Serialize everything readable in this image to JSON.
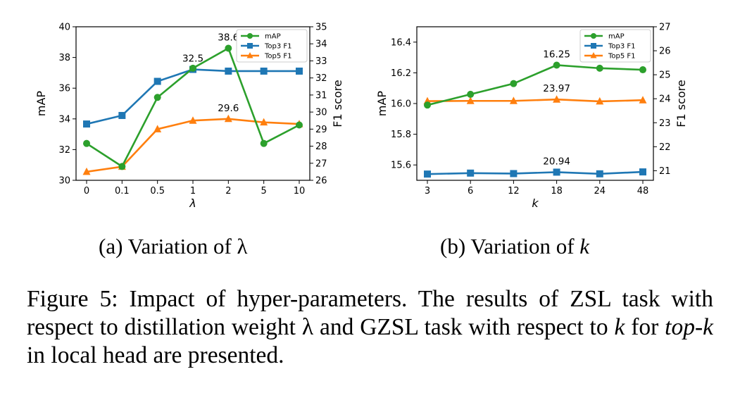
{
  "chart_data": [
    {
      "type": "line",
      "xlabel": "λ",
      "ylabel": "mAP",
      "y2label": "F1 score",
      "categories": [
        "0",
        "0.1",
        "0.5",
        "1",
        "2",
        "5",
        "10"
      ],
      "ylim": [
        30,
        40
      ],
      "yticks": [
        30,
        32,
        34,
        36,
        38,
        40
      ],
      "y2lim": [
        26,
        35
      ],
      "y2ticks": [
        26,
        27,
        28,
        29,
        30,
        31,
        32,
        33,
        34,
        35
      ],
      "legend_position": "top-right",
      "series": [
        {
          "name": "mAP",
          "axis": "left",
          "color": "#2ca02c",
          "marker": "circle",
          "values": [
            32.4,
            30.9,
            35.4,
            37.3,
            38.6,
            32.4,
            33.6
          ]
        },
        {
          "name": "Top3 F1",
          "axis": "right",
          "color": "#1f77b4",
          "marker": "square",
          "values": [
            29.3,
            29.8,
            31.8,
            32.5,
            32.4,
            32.4,
            32.4
          ]
        },
        {
          "name": "Top5 F1",
          "axis": "right",
          "color": "#ff7f0e",
          "marker": "triangle",
          "values": [
            26.5,
            26.8,
            29.0,
            29.5,
            29.6,
            29.4,
            29.3
          ]
        }
      ],
      "annotations": [
        {
          "text": "38.6",
          "series": 0,
          "index": 4
        },
        {
          "text": "32.5",
          "series": 1,
          "index": 3
        },
        {
          "text": "29.6",
          "series": 2,
          "index": 4
        }
      ]
    },
    {
      "type": "line",
      "xlabel": "k",
      "ylabel": "mAP",
      "y2label": "F1 score",
      "categories": [
        "3",
        "6",
        "12",
        "18",
        "24",
        "48"
      ],
      "ylim": [
        15.5,
        16.5
      ],
      "yticks": [
        15.6,
        15.8,
        16.0,
        16.2,
        16.4
      ],
      "y2lim": [
        20.6,
        27
      ],
      "y2ticks": [
        21,
        22,
        23,
        24,
        25,
        26,
        27
      ],
      "legend_position": "top-right",
      "series": [
        {
          "name": "mAP",
          "axis": "left",
          "color": "#2ca02c",
          "marker": "circle",
          "values": [
            15.99,
            16.06,
            16.13,
            16.25,
            16.23,
            16.22
          ]
        },
        {
          "name": "Top3 F1",
          "axis": "right",
          "color": "#1f77b4",
          "marker": "square",
          "values": [
            20.86,
            20.9,
            20.88,
            20.94,
            20.87,
            20.95
          ]
        },
        {
          "name": "Top5 F1",
          "axis": "right",
          "color": "#ff7f0e",
          "marker": "triangle",
          "values": [
            23.9,
            23.91,
            23.91,
            23.97,
            23.89,
            23.94
          ]
        }
      ],
      "annotations": [
        {
          "text": "16.25",
          "series": 0,
          "index": 3
        },
        {
          "text": "23.97",
          "series": 2,
          "index": 3
        },
        {
          "text": "20.94",
          "series": 1,
          "index": 3
        }
      ]
    }
  ],
  "subcaptions": [
    "(a) Variation of λ",
    "(b) Variation of "
  ],
  "subcaption_b_var": "k",
  "caption": {
    "p1": "Figure 5: Impact of hyper-parameters. The results of ZSL task with respect to distillation weight ",
    "v1": "λ",
    "p2": " and GZSL task with respect to ",
    "v2": "k",
    "p3": " for ",
    "v3": "top-",
    "v4": "k",
    "p4": " in local head are presented."
  }
}
